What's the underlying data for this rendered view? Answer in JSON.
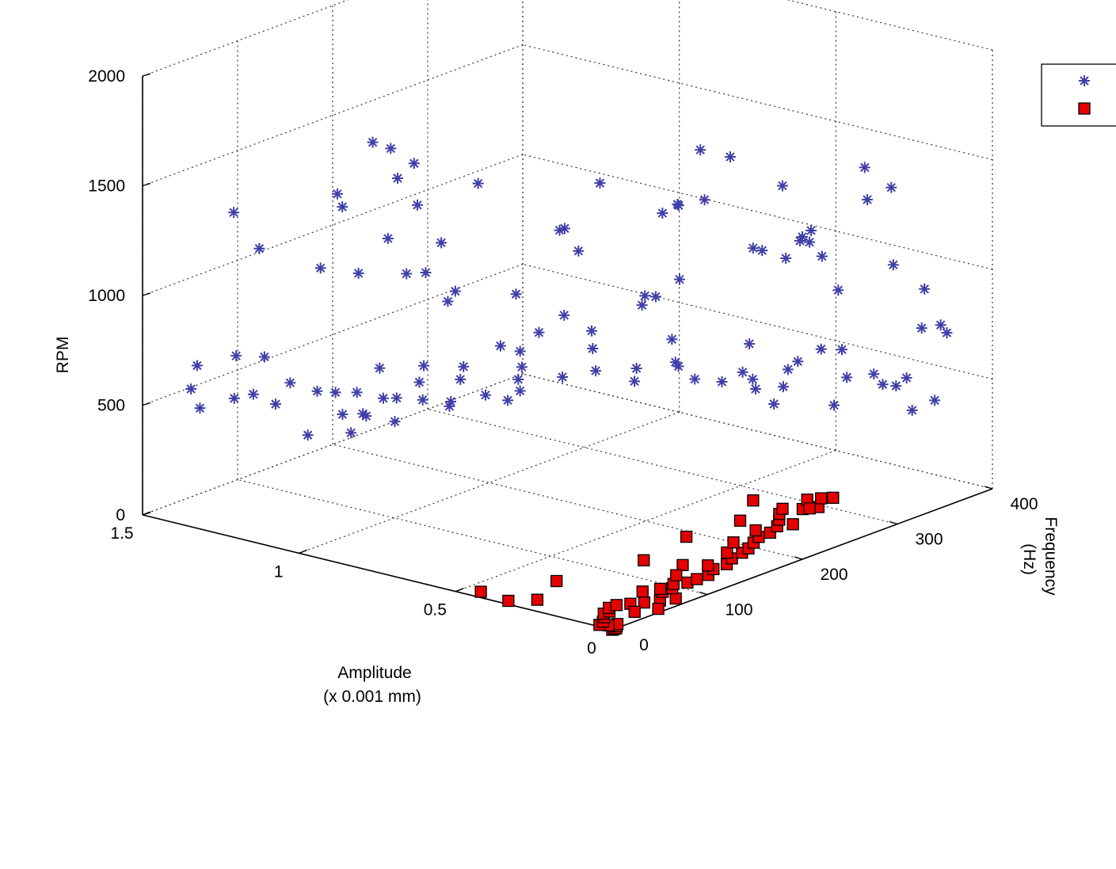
{
  "chart_data": {
    "type": "scatter",
    "projection": "3d",
    "grid": true,
    "legend_placement": "top-right (partially cut off)",
    "axes": {
      "x": {
        "label_lines": [
          "Amplitude",
          "(x 0.001 mm)"
        ],
        "lim": [
          0,
          1.5
        ],
        "ticks": [
          0,
          0.5,
          1,
          1.5
        ],
        "tick_labels": [
          "0",
          "0.5",
          "1",
          "1.5"
        ]
      },
      "y": {
        "label_lines": [
          "Frequency",
          "(Hz)"
        ],
        "lim": [
          0,
          400
        ],
        "ticks": [
          0,
          100,
          200,
          300,
          400
        ],
        "tick_labels": [
          "0",
          "100",
          "200",
          "300",
          "400"
        ]
      },
      "z": {
        "label": "RPM",
        "lim": [
          0,
          2000
        ],
        "ticks": [
          0,
          500,
          1000,
          1500,
          2000
        ],
        "tick_labels": [
          "0",
          "500",
          "1000",
          "1500",
          "2000"
        ]
      }
    },
    "colors": {
      "series_1": "#3f3fa8",
      "series_2": "#e50000",
      "series_2_edge": "#000000"
    },
    "series": [
      {
        "marker": "asterisk",
        "color": "#3f3fa8",
        "points": [
          [
            0.85,
            28,
            1880
          ],
          [
            0.92,
            70,
            1760
          ],
          [
            0.78,
            52,
            1580
          ],
          [
            0.65,
            73,
            1690
          ],
          [
            0.44,
            132,
            1670
          ],
          [
            0.18,
            152,
            1880
          ],
          [
            0.2,
            190,
            1780
          ],
          [
            1.3,
            30,
            1400
          ],
          [
            1.2,
            24,
            1280
          ],
          [
            1.06,
            60,
            1520
          ],
          [
            1.12,
            85,
            1400
          ],
          [
            0.9,
            88,
            1670
          ],
          [
            0.98,
            97,
            1560
          ],
          [
            1.22,
            95,
            1070
          ],
          [
            1.12,
            102,
            1070
          ],
          [
            1.05,
            110,
            1240
          ],
          [
            0.96,
            120,
            1100
          ],
          [
            0.92,
            138,
            1000
          ],
          [
            0.95,
            140,
            940
          ],
          [
            0.72,
            136,
            1060
          ],
          [
            0.9,
            80,
            1180
          ],
          [
            0.88,
            110,
            1280
          ],
          [
            0.66,
            162,
            1330
          ],
          [
            0.58,
            141,
            1400
          ],
          [
            0.63,
            172,
            1230
          ],
          [
            0.48,
            228,
            1400
          ],
          [
            0.42,
            207,
            1460
          ],
          [
            0.38,
            178,
            1480
          ],
          [
            0.3,
            196,
            1540
          ],
          [
            0.2,
            245,
            1560
          ],
          [
            0.17,
            256,
            1320
          ],
          [
            0.12,
            237,
            1350
          ],
          [
            0.08,
            292,
            1610
          ],
          [
            0.05,
            310,
            1500
          ],
          [
            0.09,
            298,
            1450
          ],
          [
            0.25,
            265,
            1180
          ],
          [
            0.22,
            280,
            1240
          ],
          [
            0.3,
            308,
            1220
          ],
          [
            0.4,
            280,
            1150
          ],
          [
            0.5,
            196,
            990
          ],
          [
            0.55,
            252,
            1000
          ],
          [
            0.6,
            232,
            940
          ],
          [
            0.62,
            250,
            900
          ],
          [
            0.45,
            306,
            1080
          ],
          [
            0.35,
            336,
            1040
          ],
          [
            0.28,
            330,
            920
          ],
          [
            0.18,
            355,
            1030
          ],
          [
            0.12,
            368,
            920
          ],
          [
            0.15,
            375,
            720
          ],
          [
            0.1,
            385,
            700
          ],
          [
            0.05,
            362,
            790
          ],
          [
            0.28,
            312,
            680
          ],
          [
            0.4,
            276,
            720
          ],
          [
            0.55,
            244,
            740
          ],
          [
            0.7,
            210,
            700
          ],
          [
            0.78,
            160,
            740
          ],
          [
            0.82,
            175,
            630
          ],
          [
            0.9,
            140,
            660
          ],
          [
            0.95,
            110,
            620
          ],
          [
            1.0,
            130,
            490
          ],
          [
            1.05,
            105,
            520
          ],
          [
            1.1,
            100,
            440
          ],
          [
            1.15,
            120,
            380
          ],
          [
            1.18,
            160,
            280
          ],
          [
            1.25,
            128,
            340
          ],
          [
            1.3,
            108,
            260
          ],
          [
            1.32,
            160,
            180
          ],
          [
            1.2,
            224,
            240
          ],
          [
            1.05,
            236,
            300
          ],
          [
            0.95,
            216,
            410
          ],
          [
            0.7,
            254,
            480
          ],
          [
            0.55,
            268,
            520
          ],
          [
            0.45,
            299,
            460
          ],
          [
            0.34,
            292,
            520
          ],
          [
            0.26,
            319,
            420
          ],
          [
            0.15,
            348,
            500
          ],
          [
            0.08,
            336,
            580
          ],
          [
            0.2,
            236,
            580
          ],
          [
            0.3,
            236,
            690
          ],
          [
            0.42,
            208,
            720
          ],
          [
            0.6,
            176,
            870
          ],
          [
            0.7,
            180,
            900
          ],
          [
            0.75,
            170,
            820
          ],
          [
            0.8,
            146,
            780
          ],
          [
            0.88,
            120,
            540
          ],
          [
            0.98,
            96,
            560
          ],
          [
            1.04,
            74,
            600
          ],
          [
            1.1,
            52,
            620
          ],
          [
            1.15,
            40,
            660
          ],
          [
            1.22,
            36,
            760
          ],
          [
            1.28,
            26,
            760
          ],
          [
            1.35,
            8,
            720
          ],
          [
            1.4,
            18,
            580
          ],
          [
            1.42,
            34,
            460
          ],
          [
            1.45,
            80,
            420
          ],
          [
            1.48,
            110,
            380
          ],
          [
            1.5,
            140,
            280
          ],
          [
            1.4,
            170,
            320
          ],
          [
            1.35,
            200,
            400
          ],
          [
            1.3,
            230,
            380
          ],
          [
            1.25,
            252,
            300
          ],
          [
            1.2,
            262,
            230
          ],
          [
            1.15,
            280,
            290
          ],
          [
            1.1,
            310,
            270
          ],
          [
            1.0,
            312,
            330
          ],
          [
            0.9,
            322,
            360
          ],
          [
            0.8,
            330,
            410
          ],
          [
            0.7,
            346,
            330
          ],
          [
            0.62,
            352,
            360
          ],
          [
            0.58,
            376,
            380
          ],
          [
            0.5,
            360,
            470
          ],
          [
            0.42,
            380,
            520
          ],
          [
            0.38,
            372,
            420
          ],
          [
            0.32,
            390,
            380
          ],
          [
            0.3,
            374,
            460
          ],
          [
            0.22,
            388,
            300
          ],
          [
            0.16,
            392,
            360
          ]
        ]
      },
      {
        "marker": "square",
        "color": "#e50000",
        "points": [
          [
            0.0,
            0,
            0
          ],
          [
            0.0,
            2,
            0
          ],
          [
            0.0,
            4,
            0
          ],
          [
            0.01,
            8,
            0
          ],
          [
            0.02,
            12,
            0
          ],
          [
            0.03,
            6,
            0
          ],
          [
            0.05,
            3,
            0
          ],
          [
            0.06,
            10,
            0
          ],
          [
            0.08,
            18,
            0
          ],
          [
            0.1,
            24,
            0
          ],
          [
            0.1,
            30,
            0
          ],
          [
            0.12,
            36,
            0
          ],
          [
            0.12,
            44,
            0
          ],
          [
            0.1,
            52,
            0
          ],
          [
            0.08,
            60,
            0
          ],
          [
            0.06,
            70,
            0
          ],
          [
            0.04,
            80,
            0
          ],
          [
            0.1,
            86,
            0
          ],
          [
            0.1,
            96,
            0
          ],
          [
            0.12,
            104,
            0
          ],
          [
            0.1,
            112,
            0
          ],
          [
            0.1,
            122,
            0
          ],
          [
            0.1,
            134,
            0
          ],
          [
            0.12,
            146,
            0
          ],
          [
            0.15,
            150,
            0
          ],
          [
            0.12,
            160,
            0
          ],
          [
            0.14,
            172,
            0
          ],
          [
            0.15,
            186,
            0
          ],
          [
            0.16,
            196,
            0
          ],
          [
            0.18,
            208,
            0
          ],
          [
            0.2,
            220,
            0
          ],
          [
            0.2,
            232,
            0
          ],
          [
            0.22,
            246,
            0
          ],
          [
            0.25,
            258,
            0
          ],
          [
            0.28,
            268,
            0
          ],
          [
            0.3,
            278,
            0
          ],
          [
            0.26,
            286,
            0
          ],
          [
            0.24,
            296,
            0
          ],
          [
            0.3,
            304,
            0
          ],
          [
            0.28,
            312,
            0
          ],
          [
            0.26,
            318,
            0
          ],
          [
            0.18,
            180,
            0
          ],
          [
            0.22,
            200,
            0
          ],
          [
            0.24,
            230,
            0
          ],
          [
            0.2,
            256,
            0
          ],
          [
            0.12,
            90,
            0
          ],
          [
            0.14,
            78,
            0
          ],
          [
            0.3,
            20,
            0
          ],
          [
            0.35,
            6,
            0
          ],
          [
            0.45,
            10,
            0
          ],
          [
            0.4,
            280,
            0
          ],
          [
            0.32,
            240,
            0
          ],
          [
            0.34,
            190,
            0
          ],
          [
            0.36,
            60,
            0
          ],
          [
            0.3,
            132,
            0
          ],
          [
            0.25,
            290,
            0
          ],
          [
            0.05,
            40,
            0
          ],
          [
            0.02,
            55,
            0
          ],
          [
            0.2,
            140,
            0
          ],
          [
            0.16,
            120,
            0
          ]
        ]
      }
    ]
  }
}
